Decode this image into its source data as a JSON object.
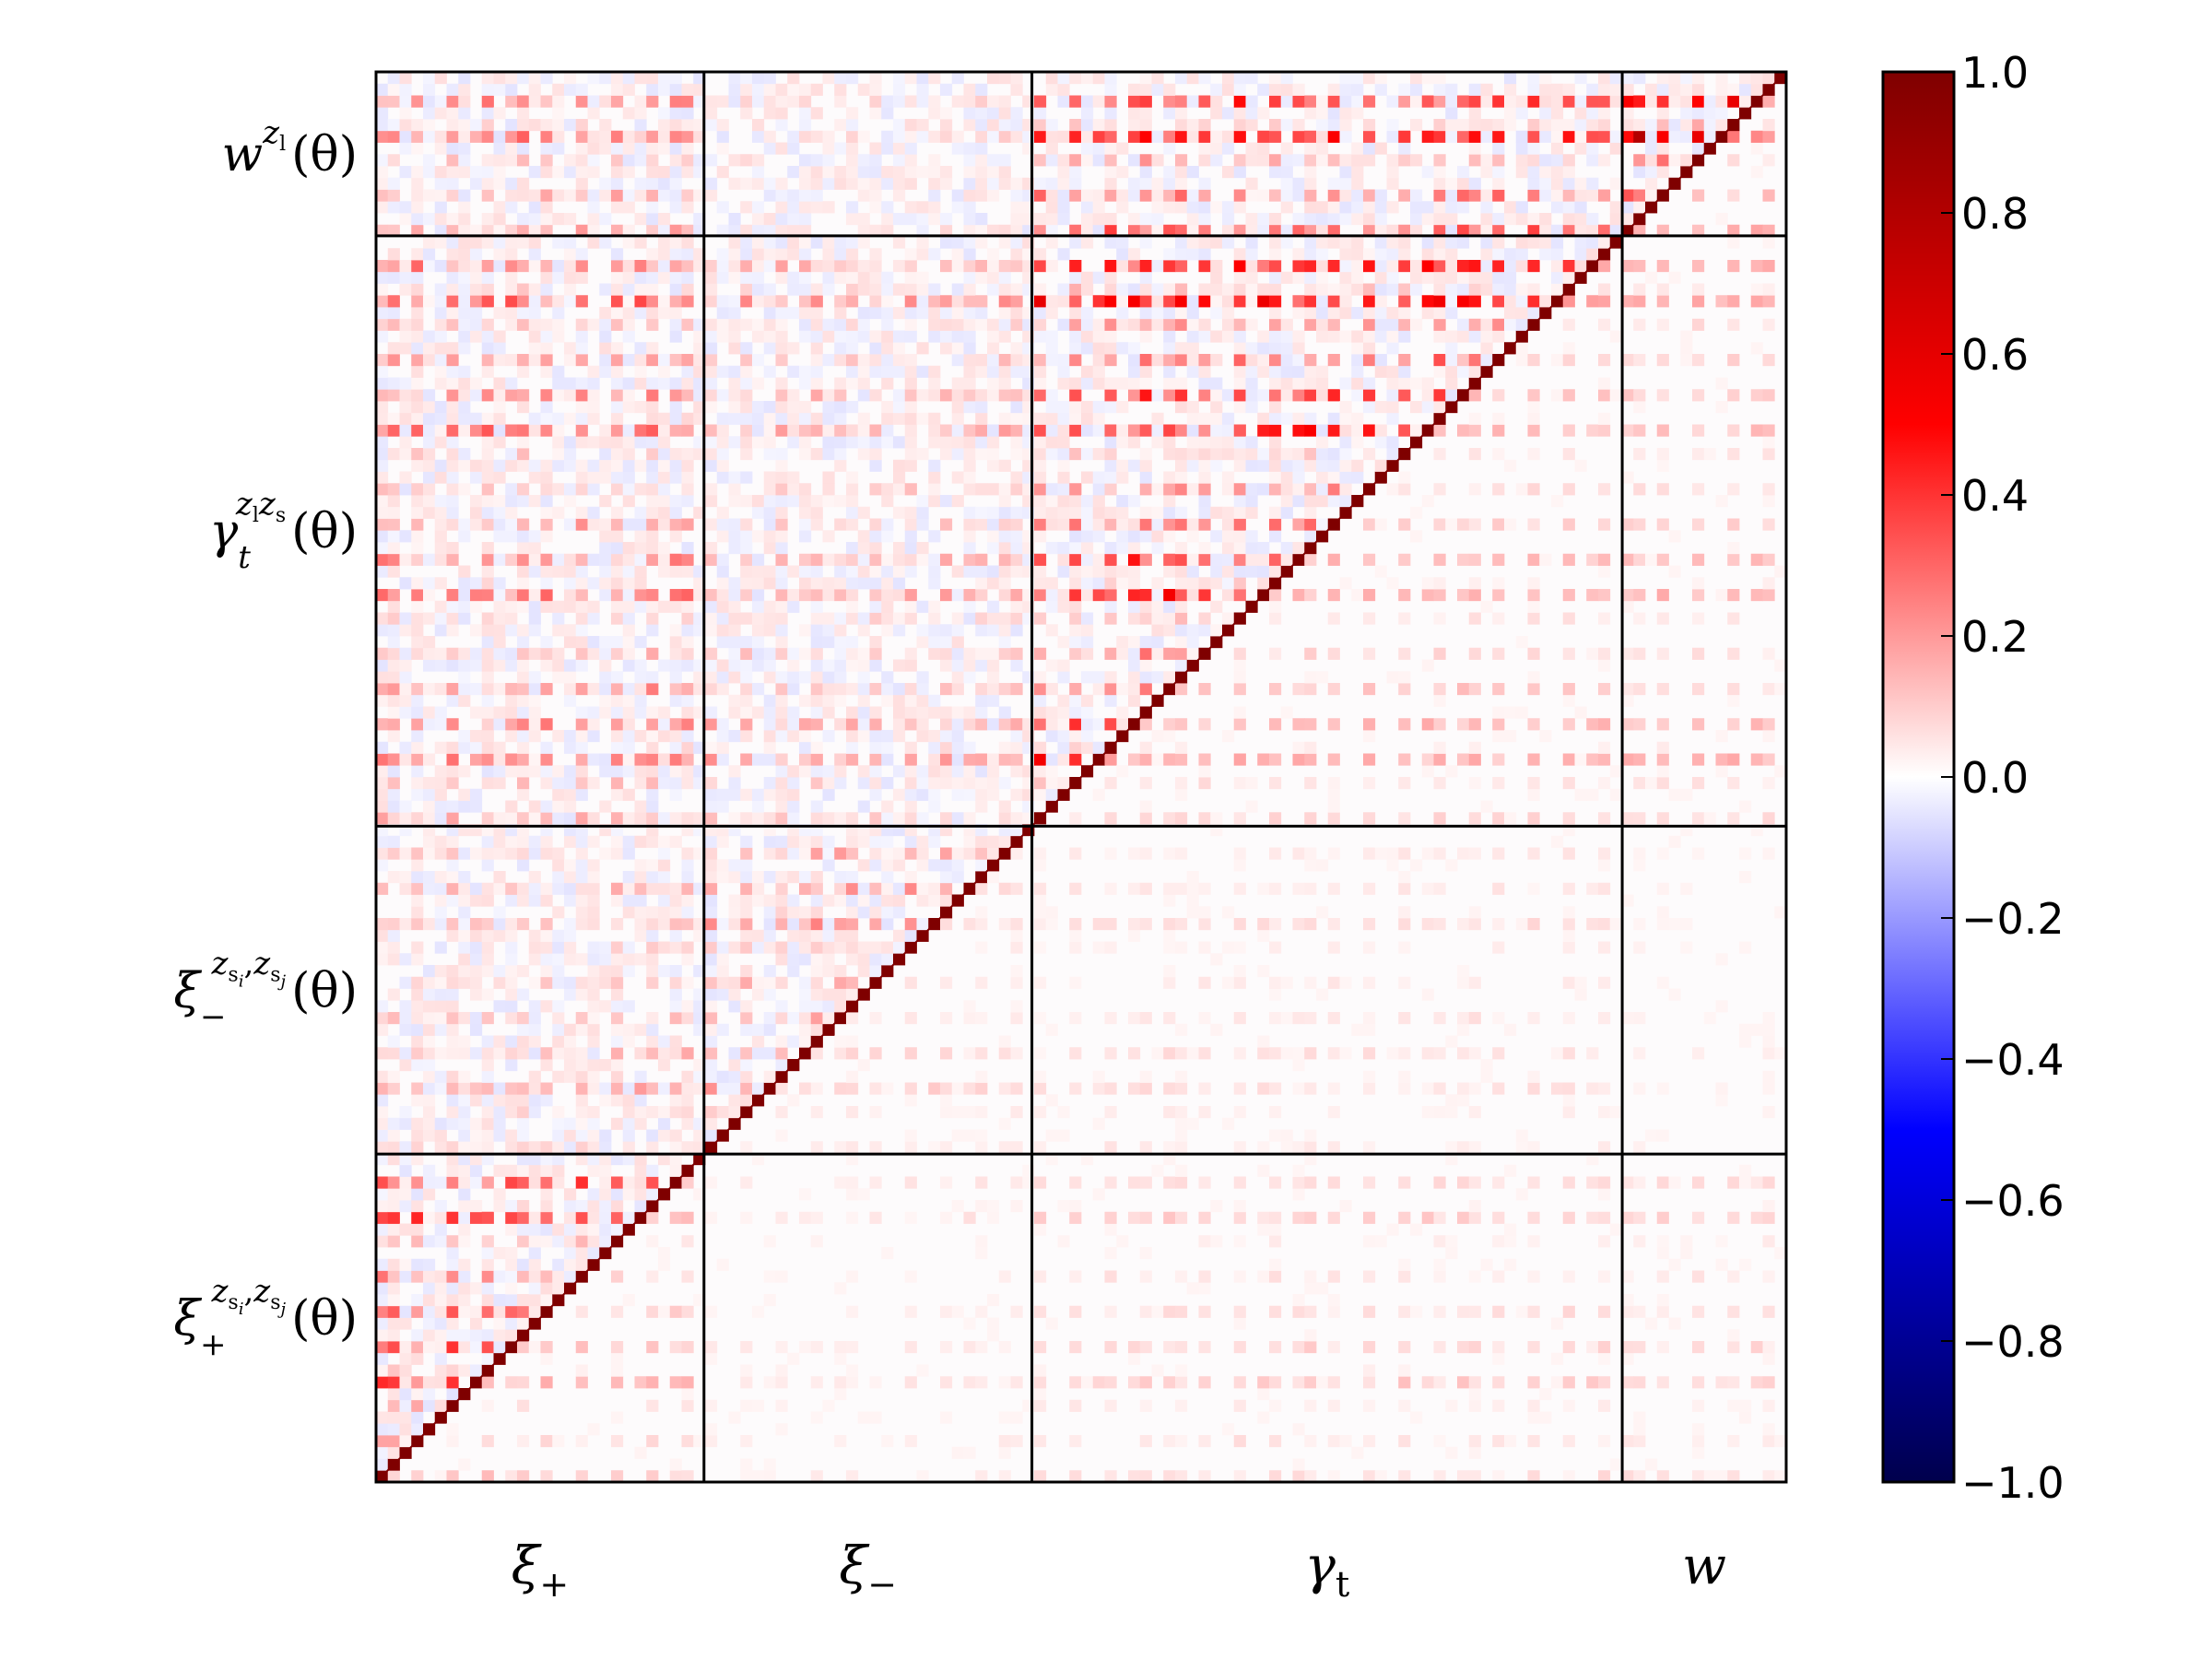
{
  "chart_data": {
    "type": "heatmap",
    "blocks": [
      {
        "name": "xi_plus",
        "label": "ξ",
        "sub": "+",
        "n_bins": 10
      },
      {
        "name": "xi_minus",
        "label": "ξ",
        "sub": "−",
        "n_bins": 10
      },
      {
        "name": "gamma_t",
        "label": "γ",
        "sub": "t",
        "n_bins": 18
      },
      {
        "name": "w",
        "label": "w",
        "sub": "",
        "n_bins": 5
      }
    ],
    "row_labels": {
      "w": {
        "base": "w",
        "sup": "z",
        "supsub": "l",
        "arg": "(θ)"
      },
      "gamma_t": {
        "base": "γ",
        "sub": "t",
        "sup": "z",
        "supsub": "l",
        "sup2": "z",
        "sup2sub": "s",
        "arg": "(θ)"
      },
      "xi_minus": {
        "base": "ξ",
        "sub": "−",
        "sup": "z",
        "supsub": "s",
        "supsub2": "i",
        "sup2": "z",
        "sup2sub": "s",
        "sup2sub2": "j",
        "arg": "(θ)"
      },
      "xi_plus": {
        "base": "ξ",
        "sub": "+",
        "sup": "z",
        "supsub": "s",
        "supsub2": "i",
        "sup2": "z",
        "sup2sub": "s",
        "sup2sub2": "j",
        "arg": "(θ)"
      }
    },
    "matrix": "correlation",
    "diagonal_value": 1.0,
    "colorbar": {
      "colormap": "seismic",
      "range": [
        -1.0,
        1.0
      ],
      "ticks": [
        "1.0",
        "0.8",
        "0.6",
        "0.4",
        "0.2",
        "0.0",
        "−0.2",
        "−0.4",
        "−0.6",
        "−0.8",
        "−1.0"
      ],
      "colors": [
        "#00004c",
        "#0000ff",
        "#ffffff",
        "#ff0000",
        "#7f0000"
      ]
    },
    "block_strength": {
      "xi_plus|xi_plus": 0.55,
      "xi_minus|xi_plus": 0.15,
      "xi_minus|xi_minus": 0.25,
      "gamma_t|xi_plus": 0.35,
      "gamma_t|xi_minus": 0.2,
      "gamma_t|gamma_t": 0.6,
      "w|xi_plus": 0.3,
      "w|xi_minus": 0.05,
      "w|gamma_t": 0.55,
      "w|w": 0.9
    }
  }
}
